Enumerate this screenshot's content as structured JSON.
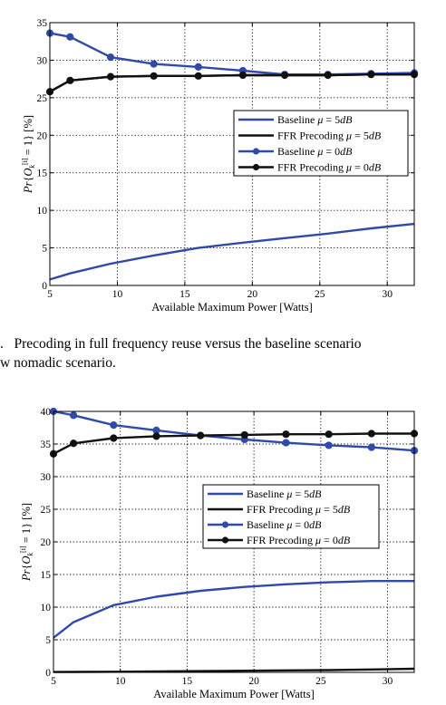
{
  "caption": {
    "line1": ".   Precoding in full frequency reuse versus the baseline scenario",
    "line2": "w nomadic scenario."
  },
  "chart_data": [
    {
      "type": "line",
      "title": "",
      "xlabel": "Available Maximum Power [Watts]",
      "ylabel": "Pr{O_k^[i] = 1} [%]",
      "xlim": [
        5,
        32
      ],
      "ylim": [
        0,
        35
      ],
      "xticks": [
        5,
        10,
        15,
        20,
        25,
        30
      ],
      "yticks": [
        0,
        5,
        10,
        15,
        20,
        25,
        30,
        35
      ],
      "grid": true,
      "legend_position": "center-right",
      "series": [
        {
          "name": "Baseline μ = 5dB",
          "color": "#2f4aa8",
          "marker": false,
          "x": [
            5,
            6.5,
            9.5,
            12.7,
            16,
            19.3,
            22.4,
            25.6,
            28.8,
            32
          ],
          "y": [
            0.8,
            1.6,
            2.9,
            4.0,
            5.0,
            5.7,
            6.3,
            6.9,
            7.6,
            8.2
          ]
        },
        {
          "name": "FFR Precoding μ = 5dB",
          "color": "#111111",
          "marker": false,
          "x": [
            5,
            6.5,
            9.5,
            12.7,
            16,
            19.3,
            22.4,
            25.6,
            28.8,
            32
          ],
          "y": [
            25.8,
            27.3,
            27.8,
            27.9,
            27.9,
            28.0,
            28.0,
            28.0,
            28.1,
            28.1
          ]
        },
        {
          "name": "Baseline μ = 0dB",
          "color": "#2f4aa8",
          "marker": true,
          "x": [
            5,
            6.5,
            9.5,
            12.7,
            16,
            19.3,
            22.4,
            25.6,
            28.8,
            32
          ],
          "y": [
            33.6,
            33.1,
            30.4,
            29.5,
            29.1,
            28.6,
            28.1,
            28.1,
            28.2,
            28.3
          ]
        },
        {
          "name": "FFR Precoding μ = 0dB",
          "color": "#111111",
          "marker": true,
          "x": [
            5,
            6.5,
            9.5,
            12.7,
            16,
            19.3,
            22.4,
            25.6,
            28.8,
            32
          ],
          "y": [
            25.8,
            27.3,
            27.8,
            27.9,
            27.9,
            28.0,
            28.0,
            28.0,
            28.1,
            28.1
          ]
        }
      ]
    },
    {
      "type": "line",
      "title": "",
      "xlabel": "Available Maximum Power [Watts]",
      "ylabel": "Pr{O_k^[i] = 1} [%]",
      "xlim": [
        5,
        32
      ],
      "ylim": [
        0,
        40
      ],
      "xticks": [
        5,
        10,
        15,
        20,
        25,
        30
      ],
      "yticks": [
        0,
        5,
        10,
        15,
        20,
        25,
        30,
        35,
        40
      ],
      "grid": true,
      "legend_position": "center-right",
      "series": [
        {
          "name": "Baseline μ = 5dB",
          "color": "#2f4aa8",
          "marker": false,
          "x": [
            5,
            6.5,
            9.5,
            12.7,
            16,
            19.3,
            22.4,
            25.6,
            28.8,
            32
          ],
          "y": [
            5.3,
            7.7,
            10.3,
            11.6,
            12.5,
            13.1,
            13.5,
            13.8,
            14.0,
            14.0
          ]
        },
        {
          "name": "FFR Precoding μ = 5dB",
          "color": "#111111",
          "marker": false,
          "x": [
            5,
            6.5,
            9.5,
            12.7,
            16,
            19.3,
            22.4,
            25.6,
            28.8,
            32
          ],
          "y": [
            0.05,
            0.07,
            0.1,
            0.15,
            0.2,
            0.25,
            0.3,
            0.35,
            0.45,
            0.55
          ]
        },
        {
          "name": "Baseline μ = 0dB",
          "color": "#2f4aa8",
          "marker": true,
          "x": [
            5,
            6.5,
            9.5,
            12.7,
            16,
            19.3,
            22.4,
            25.6,
            28.8,
            32
          ],
          "y": [
            40.0,
            39.4,
            37.9,
            37.1,
            36.3,
            35.7,
            35.2,
            34.8,
            34.5,
            34.0
          ]
        },
        {
          "name": "FFR Precoding μ = 0dB",
          "color": "#111111",
          "marker": true,
          "x": [
            5,
            6.5,
            9.5,
            12.7,
            16,
            19.3,
            22.4,
            25.6,
            28.8,
            32
          ],
          "y": [
            33.5,
            35.1,
            35.9,
            36.2,
            36.3,
            36.4,
            36.5,
            36.5,
            36.6,
            36.6
          ]
        }
      ]
    }
  ]
}
